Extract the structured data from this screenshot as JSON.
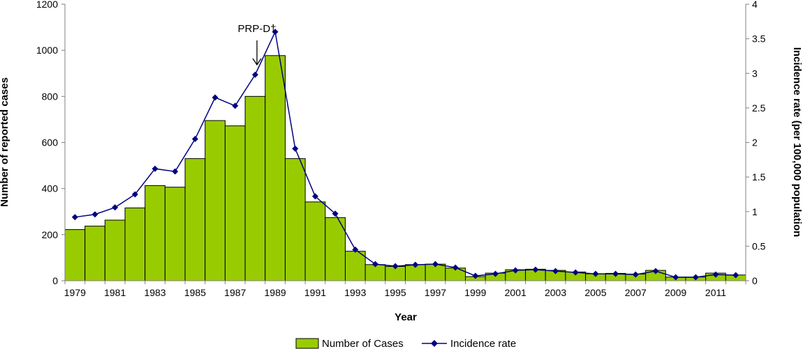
{
  "chart_data": {
    "type": "bar+line",
    "title": "",
    "xlabel": "Year",
    "ylabel": "Number of reported cases",
    "ylabel_right": "Incidence rate (per 100,000 population",
    "ylim": [
      0,
      1200
    ],
    "ylim_right": [
      0,
      4
    ],
    "y_ticks": [
      "0",
      "200",
      "400",
      "600",
      "800",
      "1000",
      "1200"
    ],
    "y_ticks_right": [
      "0",
      "0.5",
      "1",
      "1.5",
      "2",
      "2.5",
      "3",
      "3.5",
      "4"
    ],
    "x_tick_labels": [
      "1979",
      "1981",
      "1983",
      "1985",
      "1987",
      "1989",
      "1991",
      "1993",
      "1995",
      "1997",
      "1999",
      "2001",
      "2003",
      "2005",
      "2007",
      "2009",
      "2011"
    ],
    "categories": [
      1979,
      1980,
      1981,
      1982,
      1983,
      1984,
      1985,
      1986,
      1987,
      1988,
      1989,
      1990,
      1991,
      1992,
      1993,
      1994,
      1995,
      1996,
      1997,
      1998,
      1999,
      2000,
      2001,
      2002,
      2003,
      2004,
      2005,
      2006,
      2007,
      2008,
      2009,
      2010,
      2011,
      2012
    ],
    "series": [
      {
        "name": "Number of Cases",
        "type": "bar",
        "axis": "left",
        "color": "#99cc00",
        "values": [
          222,
          237,
          263,
          316,
          413,
          406,
          530,
          695,
          672,
          800,
          977,
          530,
          342,
          274,
          128,
          70,
          62,
          70,
          72,
          55,
          18,
          33,
          48,
          50,
          45,
          38,
          30,
          32,
          29,
          45,
          16,
          16,
          33,
          25
        ]
      },
      {
        "name": "Incidence rate",
        "type": "line",
        "axis": "right",
        "color": "#000080",
        "values": [
          0.92,
          0.96,
          1.06,
          1.25,
          1.62,
          1.58,
          2.05,
          2.65,
          2.53,
          2.98,
          3.6,
          1.91,
          1.22,
          0.97,
          0.45,
          0.24,
          0.21,
          0.23,
          0.24,
          0.19,
          0.07,
          0.1,
          0.15,
          0.16,
          0.14,
          0.12,
          0.1,
          0.1,
          0.09,
          0.14,
          0.05,
          0.05,
          0.09,
          0.08
        ]
      }
    ],
    "annotations": [
      {
        "text": "PRP-D†",
        "x": 1988
      }
    ],
    "legend_position": "bottom-center"
  }
}
